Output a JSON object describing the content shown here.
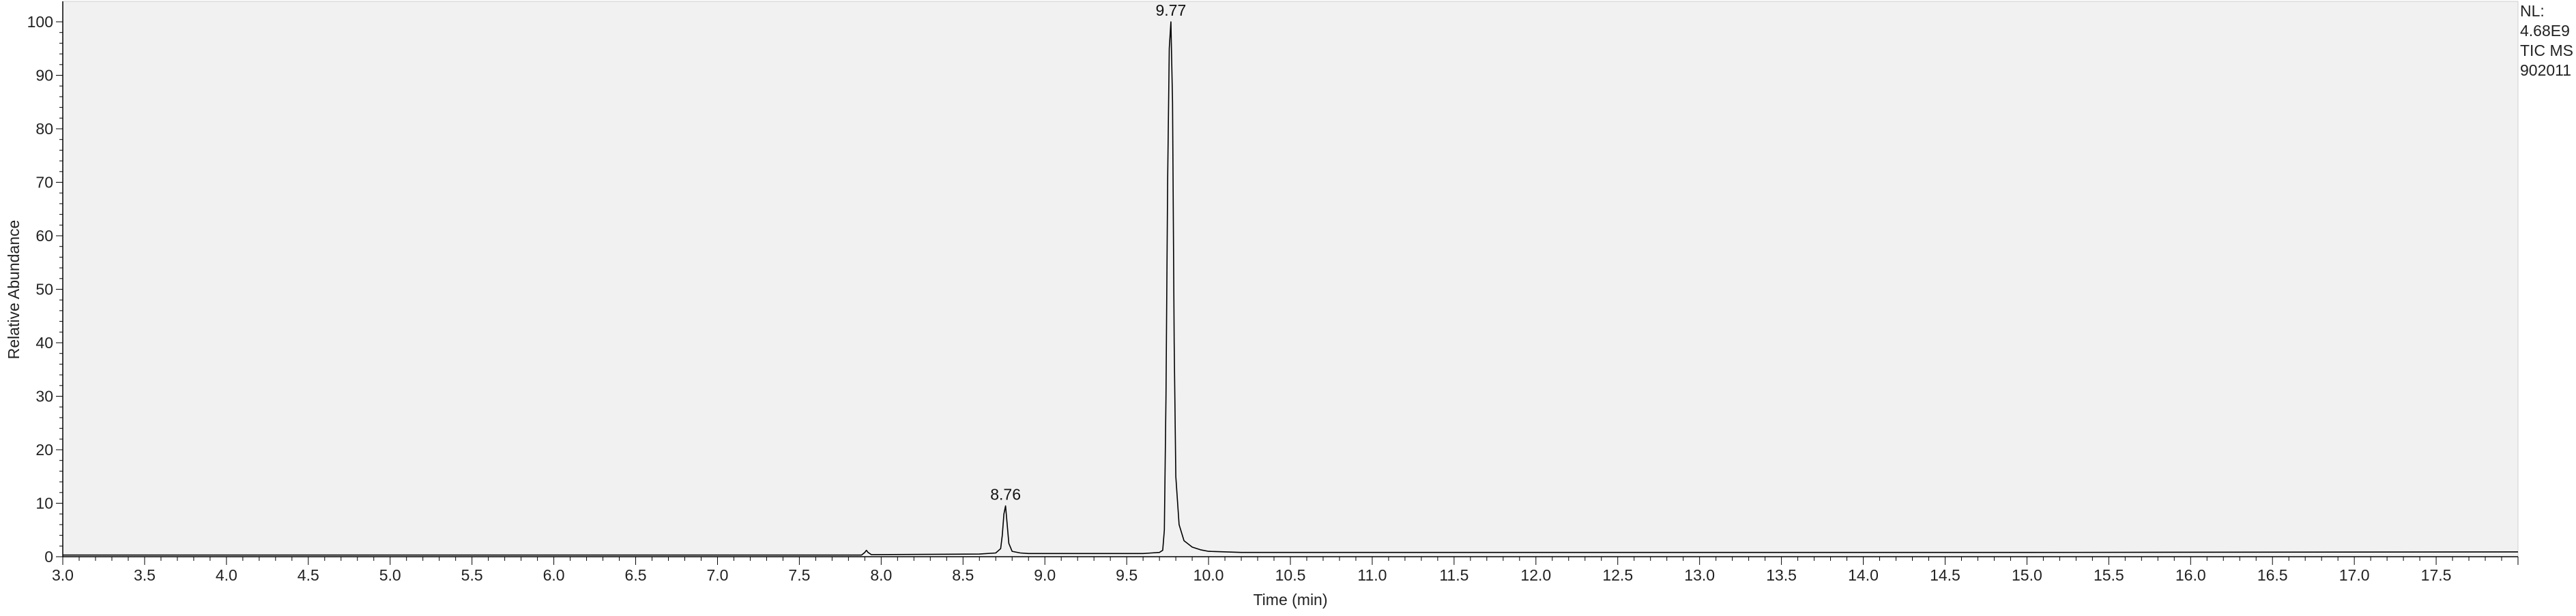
{
  "info": {
    "nl_label": "NL:",
    "nl_value": "4.68E9",
    "trace": "TIC  MS",
    "sample": "902011"
  },
  "chart_data": {
    "type": "line",
    "title": "",
    "xlabel": "Time (min)",
    "ylabel": "Relative Abundance",
    "xlim": [
      3.0,
      18.0
    ],
    "ylim": [
      0,
      100
    ],
    "x_ticks": [
      "3.0",
      "3.5",
      "4.0",
      "4.5",
      "5.0",
      "5.5",
      "6.0",
      "6.5",
      "7.0",
      "7.5",
      "8.0",
      "8.5",
      "9.0",
      "9.5",
      "10.0",
      "10.5",
      "11.0",
      "11.5",
      "12.0",
      "12.5",
      "13.0",
      "13.5",
      "14.0",
      "14.5",
      "15.0",
      "15.5",
      "16.0",
      "16.5",
      "17.0",
      "17.5"
    ],
    "y_ticks": [
      "0",
      "10",
      "20",
      "30",
      "40",
      "50",
      "60",
      "70",
      "80",
      "90",
      "100"
    ],
    "grid": false,
    "background": "#f1f1f1",
    "line_color": "#000000",
    "peak_labels": [
      {
        "x": 8.76,
        "y": 9.5,
        "text": "8.76"
      },
      {
        "x": 9.77,
        "y": 100,
        "text": "9.77"
      }
    ],
    "series": [
      {
        "x": [
          3.0,
          7.5,
          7.88,
          7.9,
          7.91,
          7.92,
          7.94,
          7.97,
          8.6,
          8.7,
          8.73,
          8.74,
          8.75,
          8.76,
          8.77,
          8.78,
          8.8,
          8.85,
          8.9,
          9.5,
          9.6,
          9.65,
          9.7,
          9.72,
          9.73,
          9.74,
          9.75,
          9.76,
          9.77,
          9.78,
          9.79,
          9.8,
          9.82,
          9.85,
          9.9,
          9.95,
          10.0,
          10.2,
          10.5,
          12.0,
          15.0,
          18.0
        ],
        "y": [
          0.3,
          0.3,
          0.3,
          0.8,
          1.2,
          0.8,
          0.4,
          0.4,
          0.5,
          0.7,
          1.5,
          4.0,
          8.0,
          9.5,
          6.0,
          2.5,
          1.0,
          0.7,
          0.6,
          0.6,
          0.6,
          0.7,
          0.8,
          1.2,
          5.0,
          30.0,
          70.0,
          95.0,
          100,
          85.0,
          40.0,
          15.0,
          6.0,
          3.0,
          1.8,
          1.3,
          1.0,
          0.8,
          0.8,
          0.8,
          0.8,
          0.9
        ]
      }
    ]
  }
}
